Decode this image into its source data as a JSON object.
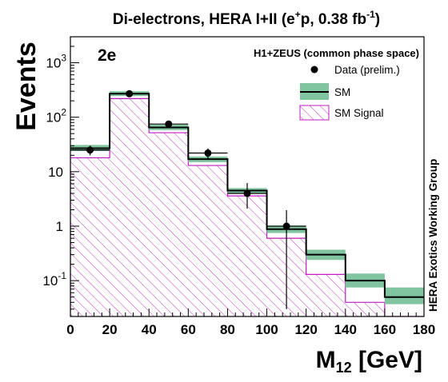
{
  "chart_data": {
    "type": "histogram",
    "title": "Di-electrons, HERA I+II (e⁺p, 0.38 fb⁻¹)",
    "title_parts": {
      "prefix": "Di-electrons, HERA I+II (e",
      "charge": "+",
      "mid": "p, 0.38 fb",
      "exp": "-1",
      "suffix": ")"
    },
    "channel_label": "2e",
    "subtitle": "H1+ZEUS (common phase space)",
    "side_label": "HERA Exotics Working Group",
    "xlabel": {
      "main": "M",
      "sub": "12",
      "unit": " [GeV]"
    },
    "ylabel": "Events",
    "xlim": [
      0,
      180
    ],
    "ylim": [
      0.022,
      3000
    ],
    "y_log": true,
    "x_ticks": [
      0,
      20,
      40,
      60,
      80,
      100,
      120,
      140,
      160,
      180
    ],
    "y_ticks": [
      {
        "value": 0.1,
        "base": "10",
        "exp": "-1"
      },
      {
        "value": 1,
        "base": "1",
        "exp": ""
      },
      {
        "value": 10,
        "base": "10",
        "exp": ""
      },
      {
        "value": 100,
        "base": "10",
        "exp": "2"
      },
      {
        "value": 1000,
        "base": "10",
        "exp": "3"
      }
    ],
    "bin_edges": [
      0,
      20,
      40,
      60,
      80,
      100,
      120,
      140,
      160,
      180
    ],
    "series": [
      {
        "name": "Data (prelim.)",
        "kind": "points",
        "x": [
          10,
          30,
          50,
          70,
          90,
          110
        ],
        "y": [
          25,
          270,
          75,
          22,
          4,
          1
        ],
        "yerr_low": [
          5,
          16,
          8.7,
          4.7,
          1.9,
          0.97
        ],
        "yerr_high": [
          5,
          16,
          8.7,
          4.7,
          2.2,
          0.97
        ]
      },
      {
        "name": "SM",
        "kind": "step_band",
        "values": [
          27,
          270,
          65,
          17,
          4.5,
          0.88,
          0.3,
          0.1,
          0.05
        ],
        "band_low": [
          24,
          245,
          58,
          15,
          4.0,
          0.75,
          0.24,
          0.075,
          0.037
        ],
        "band_high": [
          31,
          300,
          73,
          19,
          5.0,
          1.02,
          0.37,
          0.135,
          0.075
        ]
      },
      {
        "name": "SM Signal",
        "kind": "hatched_step",
        "values": [
          18,
          220,
          52,
          13,
          3.6,
          0.6,
          0.13,
          0.04,
          0.022
        ]
      }
    ],
    "legend_position": "top-right",
    "colors": {
      "band": "#80c4a0",
      "sm_line": "#000000",
      "signal": "#c01cc0",
      "data": "#000000"
    }
  }
}
